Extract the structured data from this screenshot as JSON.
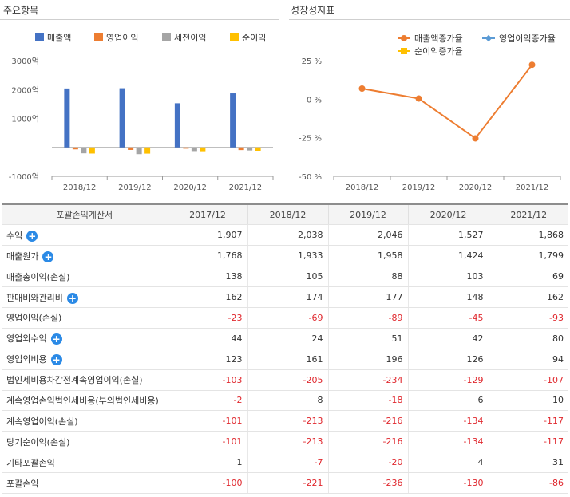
{
  "left_panel": {
    "title": "주요항목"
  },
  "right_panel": {
    "title": "성장성지표"
  },
  "chart_data": [
    {
      "type": "bar",
      "title": "주요항목",
      "categories": [
        "2018/12",
        "2019/12",
        "2020/12",
        "2021/12"
      ],
      "series": [
        {
          "name": "매출액",
          "color": "#4472c4",
          "values": [
            2038,
            2046,
            1527,
            1868
          ]
        },
        {
          "name": "영업이익",
          "color": "#ed7d31",
          "values": [
            -69,
            -89,
            -45,
            -93
          ]
        },
        {
          "name": "세전이익",
          "color": "#a5a5a5",
          "values": [
            -205,
            -234,
            -129,
            -107
          ]
        },
        {
          "name": "순이익",
          "color": "#ffc000",
          "values": [
            -213,
            -216,
            -134,
            -117
          ]
        }
      ],
      "yticks": [
        {
          "value": 3000,
          "label": "3000억"
        },
        {
          "value": 2000,
          "label": "2000억"
        },
        {
          "value": 1000,
          "label": "1000억"
        },
        {
          "value": -1000,
          "label": "-1000억"
        }
      ],
      "ylim": [
        -1000,
        3000
      ],
      "legend": "top-right"
    },
    {
      "type": "line",
      "title": "성장성지표",
      "categories": [
        "2018/12",
        "2019/12",
        "2020/12",
        "2021/12"
      ],
      "series": [
        {
          "name": "매출액증가율",
          "color": "#ed7d31",
          "values": [
            6.9,
            0.4,
            -25.4,
            22.3
          ]
        },
        {
          "name": "영업이익증가율",
          "color": "#5b9bd5",
          "values": [
            null,
            null,
            null,
            null
          ]
        },
        {
          "name": "순이익증가율",
          "color": "#ffc000",
          "values": [
            null,
            null,
            null,
            null
          ]
        }
      ],
      "yticks": [
        {
          "value": 25,
          "label": "25 %"
        },
        {
          "value": 0,
          "label": "0 %"
        },
        {
          "value": -25,
          "label": "-25 %"
        },
        {
          "value": -50,
          "label": "-50 %"
        }
      ],
      "ylim": [
        -50,
        25
      ],
      "legend": "top"
    }
  ],
  "table": {
    "headers": [
      "포괄손익계산서",
      "2017/12",
      "2018/12",
      "2019/12",
      "2020/12",
      "2021/12"
    ],
    "rows": [
      {
        "label": "수익",
        "expand": true,
        "values": [
          "1,907",
          "2,038",
          "2,046",
          "1,527",
          "1,868"
        ]
      },
      {
        "label": "매출원가",
        "expand": true,
        "values": [
          "1,768",
          "1,933",
          "1,958",
          "1,424",
          "1,799"
        ]
      },
      {
        "label": "매출총이익(손실)",
        "expand": false,
        "values": [
          "138",
          "105",
          "88",
          "103",
          "69"
        ]
      },
      {
        "label": "판매비와관리비",
        "expand": true,
        "values": [
          "162",
          "174",
          "177",
          "148",
          "162"
        ]
      },
      {
        "label": "영업이익(손실)",
        "expand": false,
        "values": [
          "-23",
          "-69",
          "-89",
          "-45",
          "-93"
        ]
      },
      {
        "label": "영업외수익",
        "expand": true,
        "values": [
          "44",
          "24",
          "51",
          "42",
          "80"
        ]
      },
      {
        "label": "영업외비용",
        "expand": true,
        "values": [
          "123",
          "161",
          "196",
          "126",
          "94"
        ]
      },
      {
        "label": "법인세비용차감전계속영업이익(손실)",
        "expand": false,
        "values": [
          "-103",
          "-205",
          "-234",
          "-129",
          "-107"
        ]
      },
      {
        "label": "계속영업손익법인세비용(부의법인세비용)",
        "expand": false,
        "values": [
          "-2",
          "8",
          "-18",
          "6",
          "10"
        ]
      },
      {
        "label": "계속영업이익(손실)",
        "expand": false,
        "values": [
          "-101",
          "-213",
          "-216",
          "-134",
          "-117"
        ]
      },
      {
        "label": "당기순이익(손실)",
        "expand": false,
        "values": [
          "-101",
          "-213",
          "-216",
          "-134",
          "-117"
        ]
      },
      {
        "label": "기타포괄손익",
        "expand": false,
        "values": [
          "1",
          "-7",
          "-20",
          "4",
          "31"
        ]
      },
      {
        "label": "포괄손익",
        "expand": false,
        "values": [
          "-100",
          "-221",
          "-236",
          "-130",
          "-86"
        ]
      }
    ]
  }
}
